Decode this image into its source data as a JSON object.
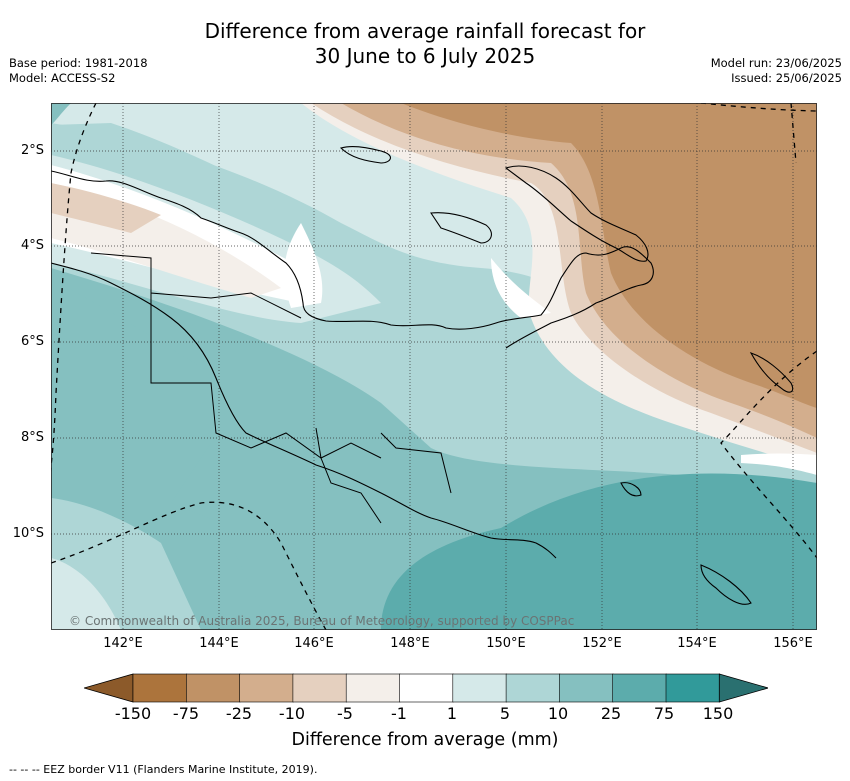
{
  "title": {
    "line1": "Difference from average rainfall forecast for",
    "line2": "30 June to 6 July 2025"
  },
  "meta": {
    "base_period": "Base period: 1981-2018",
    "model": "Model: ACCESS-S2",
    "model_run": "Model run: 23/06/2025",
    "issued": "Issued: 25/06/2025"
  },
  "map": {
    "region": "Papua New Guinea",
    "lat_labels": [
      "2°S",
      "4°S",
      "6°S",
      "8°S",
      "10°S"
    ],
    "lon_labels": [
      "142°E",
      "144°E",
      "146°E",
      "148°E",
      "150°E",
      "152°E",
      "154°E",
      "156°E"
    ],
    "lat_range": [
      -12,
      -1
    ],
    "lon_range": [
      141,
      156.5
    ],
    "gridlines": true,
    "copyright": "© Commonwealth of Australia 2025, Bureau of Meteorology, supported by COSPPac"
  },
  "colorbar": {
    "ticks": [
      "-150",
      "-75",
      "-25",
      "-10",
      "-5",
      "-1",
      "1",
      "5",
      "10",
      "25",
      "75",
      "150"
    ],
    "colors": [
      "#ac743c",
      "#c09266",
      "#d3ae8d",
      "#e5d0bf",
      "#f4efea",
      "#ffffff",
      "#d5e9e9",
      "#aed6d6",
      "#85c0c0",
      "#5cacac",
      "#319a9a"
    ],
    "under_color": "#8c5a2a",
    "over_color": "#2a7070",
    "label": "Difference from average (mm)"
  },
  "legend": {
    "eez_note": "--  --  -- EEZ border V11 (Flanders Marine Institute, 2019)."
  }
}
